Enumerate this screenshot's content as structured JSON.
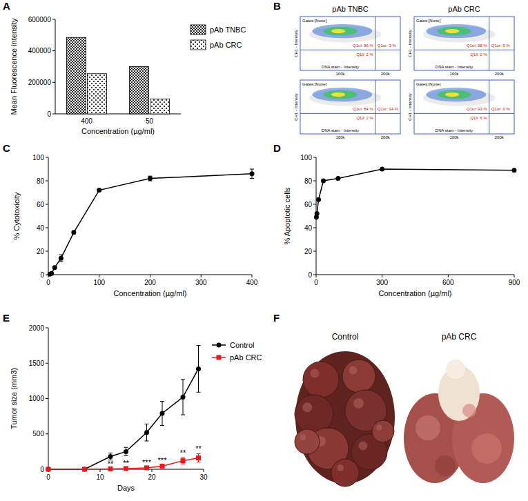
{
  "panel_letters": [
    "A",
    "B",
    "C",
    "D",
    "E",
    "F"
  ],
  "chart_data": [
    {
      "type": "bar",
      "categories": [
        "400",
        "50"
      ],
      "x_label": "Concentration (µg/ml)",
      "y_label": "Mean Fluorescence intensity",
      "series": [
        {
          "name": "pAb TNBC",
          "color": "#2a2a2a",
          "values": [
            485000,
            300000
          ]
        },
        {
          "name": "pAb CRC",
          "color": "#3a3a3a",
          "values": [
            255000,
            95000
          ]
        }
      ],
      "ylim": [
        0,
        600000
      ],
      "yticks": [
        0,
        200000,
        400000,
        600000
      ],
      "legend": "right"
    },
    {
      "type": "line",
      "x": [
        3.125,
        6.25,
        12.5,
        25,
        50,
        100,
        200,
        400
      ],
      "values": [
        0.5,
        1,
        6,
        14,
        36,
        72,
        82,
        86
      ],
      "errors": [
        0.5,
        0.5,
        1,
        3,
        1,
        1,
        2,
        4
      ],
      "xlim": [
        0,
        400
      ],
      "xticks": [
        0,
        100,
        200,
        300,
        400
      ],
      "ylim": [
        0,
        100
      ],
      "yticks": [
        0,
        20,
        40,
        60,
        80,
        100
      ],
      "x_label": "Concentration (µg/ml)",
      "y_label": "% Cytotoxicity",
      "color": "#000000",
      "marker": "circle"
    },
    {
      "type": "line",
      "x": [
        1.2,
        3.7,
        11,
        33,
        100,
        300,
        900
      ],
      "values": [
        49,
        52,
        64,
        80,
        82,
        90,
        89
      ],
      "xlim": [
        0,
        900
      ],
      "xticks": [
        0,
        300,
        600,
        900
      ],
      "ylim": [
        0,
        100
      ],
      "yticks": [
        0,
        20,
        40,
        60,
        80,
        100
      ],
      "x_label": "Concentration (µg/ml)",
      "y_label": "% Apoptotic cells",
      "color": "#000000",
      "marker": "circle"
    },
    {
      "type": "line",
      "x": [
        0,
        7,
        12,
        15,
        19,
        22,
        26,
        29
      ],
      "series": [
        {
          "name": "Control",
          "color": "#000000",
          "marker": "circle",
          "values": [
            0,
            0,
            180,
            250,
            520,
            790,
            1020,
            1420
          ],
          "errors": [
            0,
            0,
            50,
            60,
            120,
            170,
            250,
            330
          ]
        },
        {
          "name": "pAb CRC",
          "color": "#e41a1c",
          "marker": "square",
          "values": [
            0,
            0,
            5,
            10,
            20,
            45,
            120,
            160
          ],
          "errors": [
            0,
            0,
            3,
            5,
            10,
            15,
            45,
            60
          ]
        }
      ],
      "annotations": [
        {
          "x": 12,
          "text": "**"
        },
        {
          "x": 15,
          "text": "**"
        },
        {
          "x": 19,
          "text": "***"
        },
        {
          "x": 22,
          "text": "***"
        },
        {
          "x": 26,
          "text": "**"
        },
        {
          "x": 29,
          "text": "**"
        }
      ],
      "xlim": [
        0,
        30
      ],
      "xticks": [
        0,
        10,
        20,
        30
      ],
      "ylim": [
        0,
        2000
      ],
      "yticks": [
        0,
        500,
        1000,
        1500,
        2000
      ],
      "x_label": "Days",
      "y_label": "Tumor size (mm3)",
      "legend": "right"
    }
  ],
  "flow_panel": {
    "columns": [
      "pAb TNBC",
      "pAb CRC"
    ],
    "plots": [
      {
        "gate": "Gates:[None]",
        "x_label": "DNA stain - Intensity",
        "y_label": "CH1 - Intensity",
        "x_ticks": [
          "100k",
          "200k"
        ],
        "quadrants": [
          "Q1ul: 96 %",
          "Q1ur: 3 %",
          "Q1ll: 2 %"
        ]
      },
      {
        "gate": "Gates:[None]",
        "x_label": "DNA stain - Intensity",
        "y_label": "CH1 - Intensity",
        "x_ticks": [
          "100k",
          "200k"
        ],
        "quadrants": [
          "Q1ul: 98 %",
          "Q1ur: 0 %",
          "Q1ll: 2 %"
        ]
      },
      {
        "gate": "Gates:[None]",
        "x_label": "DNA stain - Intensity",
        "y_label": "CH1 - Intensity",
        "x_ticks": [
          "100k",
          "200k"
        ],
        "quadrants": [
          "Q1ul: 84 %",
          "Q1ur: 14 %",
          "Q1ll: 2 %"
        ]
      },
      {
        "gate": "Gates:[None]",
        "x_label": "DNA stain - Intensity",
        "y_label": "CH1 - Intensity",
        "x_ticks": [
          "100k",
          "200k"
        ],
        "quadrants": [
          "Q1ul: 93 %",
          "Q1ur: 0 %",
          "Q1ll: 6 %"
        ]
      }
    ]
  },
  "photo_panel": {
    "labels": [
      "Control",
      "pAb CRC"
    ]
  }
}
